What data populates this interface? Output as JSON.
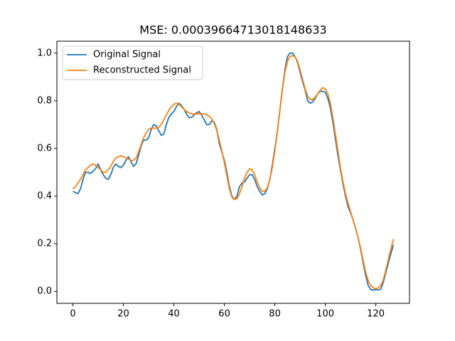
{
  "chart_data": {
    "type": "line",
    "title": "MSE: 0.00039664713018148633",
    "x": [
      0,
      1,
      2,
      3,
      4,
      5,
      6,
      7,
      8,
      9,
      10,
      11,
      12,
      13,
      14,
      15,
      16,
      17,
      18,
      19,
      20,
      21,
      22,
      23,
      24,
      25,
      26,
      27,
      28,
      29,
      30,
      31,
      32,
      33,
      34,
      35,
      36,
      37,
      38,
      39,
      40,
      41,
      42,
      43,
      44,
      45,
      46,
      47,
      48,
      49,
      50,
      51,
      52,
      53,
      54,
      55,
      56,
      57,
      58,
      59,
      60,
      61,
      62,
      63,
      64,
      65,
      66,
      67,
      68,
      69,
      70,
      71,
      72,
      73,
      74,
      75,
      76,
      77,
      78,
      79,
      80,
      81,
      82,
      83,
      84,
      85,
      86,
      87,
      88,
      89,
      90,
      91,
      92,
      93,
      94,
      95,
      96,
      97,
      98,
      99,
      100,
      101,
      102,
      103,
      104,
      105,
      106,
      107,
      108,
      109,
      110,
      111,
      112,
      113,
      114,
      115,
      116,
      117,
      118,
      119,
      120,
      121,
      122,
      123,
      124,
      125,
      126,
      127
    ],
    "series": [
      {
        "name": "Original Signal",
        "color": "#1f77b4",
        "values": [
          0.42,
          0.415,
          0.41,
          0.43,
          0.47,
          0.5,
          0.5,
          0.495,
          0.505,
          0.515,
          0.535,
          0.51,
          0.49,
          0.475,
          0.47,
          0.49,
          0.52,
          0.535,
          0.525,
          0.52,
          0.53,
          0.55,
          0.565,
          0.545,
          0.525,
          0.535,
          0.57,
          0.61,
          0.635,
          0.635,
          0.645,
          0.68,
          0.7,
          0.695,
          0.675,
          0.655,
          0.66,
          0.7,
          0.73,
          0.745,
          0.755,
          0.775,
          0.79,
          0.78,
          0.765,
          0.745,
          0.73,
          0.73,
          0.74,
          0.75,
          0.755,
          0.74,
          0.72,
          0.7,
          0.7,
          0.715,
          0.71,
          0.68,
          0.62,
          0.585,
          0.55,
          0.5,
          0.44,
          0.4,
          0.385,
          0.4,
          0.44,
          0.455,
          0.46,
          0.475,
          0.49,
          0.49,
          0.47,
          0.44,
          0.42,
          0.405,
          0.41,
          0.43,
          0.47,
          0.53,
          0.6,
          0.67,
          0.76,
          0.85,
          0.93,
          0.985,
          1.0,
          1.0,
          0.985,
          0.96,
          0.92,
          0.88,
          0.845,
          0.8,
          0.79,
          0.795,
          0.81,
          0.83,
          0.84,
          0.84,
          0.835,
          0.81,
          0.77,
          0.71,
          0.64,
          0.57,
          0.51,
          0.45,
          0.4,
          0.355,
          0.33,
          0.3,
          0.265,
          0.225,
          0.175,
          0.12,
          0.065,
          0.025,
          0.008,
          0.005,
          0.008,
          0.006,
          0.01,
          0.04,
          0.08,
          0.12,
          0.16,
          0.195
        ]
      },
      {
        "name": "Reconstructed Signal",
        "color": "#ff7f0e",
        "values": [
          0.43,
          0.44,
          0.455,
          0.47,
          0.49,
          0.51,
          0.52,
          0.53,
          0.535,
          0.53,
          0.52,
          0.51,
          0.5,
          0.5,
          0.51,
          0.525,
          0.545,
          0.56,
          0.565,
          0.57,
          0.565,
          0.56,
          0.555,
          0.55,
          0.55,
          0.56,
          0.585,
          0.615,
          0.645,
          0.665,
          0.68,
          0.685,
          0.685,
          0.685,
          0.69,
          0.7,
          0.72,
          0.74,
          0.76,
          0.775,
          0.785,
          0.79,
          0.785,
          0.775,
          0.765,
          0.755,
          0.75,
          0.745,
          0.745,
          0.745,
          0.745,
          0.745,
          0.745,
          0.74,
          0.735,
          0.725,
          0.705,
          0.675,
          0.635,
          0.59,
          0.54,
          0.485,
          0.43,
          0.395,
          0.385,
          0.39,
          0.41,
          0.44,
          0.475,
          0.5,
          0.515,
          0.51,
          0.49,
          0.46,
          0.435,
          0.42,
          0.42,
          0.435,
          0.47,
          0.52,
          0.59,
          0.67,
          0.76,
          0.845,
          0.92,
          0.965,
          0.985,
          0.99,
          0.985,
          0.965,
          0.93,
          0.89,
          0.85,
          0.82,
          0.805,
          0.805,
          0.815,
          0.83,
          0.845,
          0.855,
          0.85,
          0.83,
          0.79,
          0.73,
          0.66,
          0.59,
          0.52,
          0.46,
          0.41,
          0.37,
          0.335,
          0.3,
          0.265,
          0.225,
          0.18,
          0.13,
          0.08,
          0.045,
          0.025,
          0.015,
          0.012,
          0.015,
          0.025,
          0.05,
          0.09,
          0.135,
          0.18,
          0.22
        ]
      }
    ],
    "xlim": [
      -6.35,
      133.35
    ],
    "ylim": [
      -0.05,
      1.05
    ],
    "xticks": [
      0,
      20,
      40,
      60,
      80,
      100,
      120
    ],
    "yticks": [
      {
        "value": 0.0,
        "label": "0.0"
      },
      0.2,
      0.4,
      0.6,
      0.8,
      {
        "value": 1.0,
        "label": "1.0"
      }
    ],
    "legend": "upper left"
  }
}
